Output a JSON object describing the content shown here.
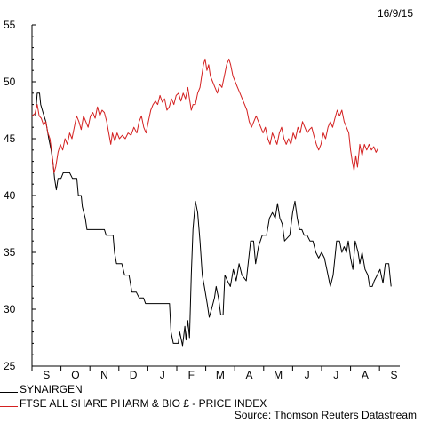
{
  "date_label": "16/9/15",
  "source": "Source: Thomson Reuters Datastream",
  "colors": {
    "synairgen": "#000000",
    "ftse": "#d42020",
    "axis": "#000000"
  },
  "chart_data": {
    "type": "line",
    "title": "",
    "xlabel": "",
    "ylabel": "",
    "ylim": [
      25,
      55
    ],
    "yticks": [
      25,
      30,
      35,
      40,
      45,
      50,
      55
    ],
    "x_range": [
      0,
      12.7
    ],
    "months": [
      "S",
      "O",
      "N",
      "D",
      "J",
      "F",
      "M",
      "A",
      "M",
      "J",
      "J",
      "A",
      "S"
    ],
    "grid": false,
    "legend_position": "bottom-left",
    "series": [
      {
        "name": "SYNAIRGEN",
        "color": "#000000",
        "points": [
          [
            0.0,
            47.0
          ],
          [
            0.12,
            47.0
          ],
          [
            0.18,
            49.0
          ],
          [
            0.26,
            49.0
          ],
          [
            0.3,
            48.0
          ],
          [
            0.38,
            47.3
          ],
          [
            0.48,
            46.5
          ],
          [
            0.58,
            45.0
          ],
          [
            0.66,
            44.0
          ],
          [
            0.72,
            43.0
          ],
          [
            0.78,
            41.5
          ],
          [
            0.84,
            40.5
          ],
          [
            0.9,
            41.5
          ],
          [
            1.0,
            41.5
          ],
          [
            1.08,
            42.0
          ],
          [
            1.3,
            42.0
          ],
          [
            1.4,
            41.5
          ],
          [
            1.55,
            41.5
          ],
          [
            1.6,
            40.0
          ],
          [
            1.7,
            40.0
          ],
          [
            1.74,
            39.0
          ],
          [
            1.84,
            38.0
          ],
          [
            1.9,
            37.0
          ],
          [
            2.1,
            37.0
          ],
          [
            2.5,
            37.0
          ],
          [
            2.56,
            36.5
          ],
          [
            2.8,
            36.5
          ],
          [
            2.85,
            35.0
          ],
          [
            2.92,
            34.0
          ],
          [
            3.1,
            34.0
          ],
          [
            3.2,
            33.0
          ],
          [
            3.35,
            33.0
          ],
          [
            3.45,
            31.5
          ],
          [
            3.6,
            31.5
          ],
          [
            3.7,
            31.0
          ],
          [
            3.85,
            31.0
          ],
          [
            3.92,
            30.5
          ],
          [
            4.5,
            30.5
          ],
          [
            4.75,
            30.5
          ],
          [
            4.8,
            28.0
          ],
          [
            4.88,
            27.0
          ],
          [
            5.05,
            27.0
          ],
          [
            5.1,
            28.0
          ],
          [
            5.2,
            26.8
          ],
          [
            5.28,
            28.5
          ],
          [
            5.32,
            27.3
          ],
          [
            5.38,
            29.0
          ],
          [
            5.44,
            27.5
          ],
          [
            5.5,
            33.0
          ],
          [
            5.56,
            37.0
          ],
          [
            5.64,
            39.5
          ],
          [
            5.72,
            38.5
          ],
          [
            5.8,
            36.0
          ],
          [
            5.88,
            33.0
          ],
          [
            5.95,
            32.0
          ],
          [
            6.05,
            30.5
          ],
          [
            6.12,
            29.3
          ],
          [
            6.2,
            30.0
          ],
          [
            6.3,
            31.0
          ],
          [
            6.36,
            32.0
          ],
          [
            6.44,
            31.0
          ],
          [
            6.52,
            29.5
          ],
          [
            6.6,
            29.5
          ],
          [
            6.66,
            33.0
          ],
          [
            6.75,
            32.5
          ],
          [
            6.85,
            32.0
          ],
          [
            6.95,
            33.5
          ],
          [
            7.05,
            32.5
          ],
          [
            7.15,
            34.0
          ],
          [
            7.25,
            33.0
          ],
          [
            7.4,
            32.5
          ],
          [
            7.55,
            36.0
          ],
          [
            7.65,
            36.0
          ],
          [
            7.72,
            34.0
          ],
          [
            7.82,
            35.5
          ],
          [
            7.95,
            36.5
          ],
          [
            8.1,
            36.5
          ],
          [
            8.2,
            38.0
          ],
          [
            8.3,
            38.5
          ],
          [
            8.4,
            38.0
          ],
          [
            8.48,
            39.3
          ],
          [
            8.56,
            38.0
          ],
          [
            8.64,
            37.5
          ],
          [
            8.72,
            36.0
          ],
          [
            8.9,
            36.5
          ],
          [
            9.0,
            38.5
          ],
          [
            9.08,
            39.5
          ],
          [
            9.16,
            38.0
          ],
          [
            9.24,
            37.0
          ],
          [
            9.32,
            37.0
          ],
          [
            9.4,
            36.5
          ],
          [
            9.5,
            36.5
          ],
          [
            9.6,
            36.0
          ],
          [
            9.7,
            36.0
          ],
          [
            9.8,
            35.0
          ],
          [
            9.9,
            34.5
          ],
          [
            10.0,
            35.0
          ],
          [
            10.1,
            34.5
          ],
          [
            10.22,
            33.0
          ],
          [
            10.3,
            32.0
          ],
          [
            10.4,
            33.0
          ],
          [
            10.52,
            36.0
          ],
          [
            10.62,
            36.0
          ],
          [
            10.7,
            35.0
          ],
          [
            10.78,
            35.5
          ],
          [
            10.86,
            35.0
          ],
          [
            10.92,
            36.0
          ],
          [
            11.0,
            34.5
          ],
          [
            11.08,
            33.5
          ],
          [
            11.16,
            36.0
          ],
          [
            11.26,
            35.0
          ],
          [
            11.32,
            34.0
          ],
          [
            11.4,
            35.0
          ],
          [
            11.5,
            33.5
          ],
          [
            11.6,
            33.0
          ],
          [
            11.66,
            32.0
          ],
          [
            11.75,
            32.0
          ],
          [
            11.82,
            32.5
          ],
          [
            11.92,
            33.0
          ],
          [
            12.02,
            33.5
          ],
          [
            12.06,
            33.0
          ],
          [
            12.12,
            32.3
          ],
          [
            12.2,
            34.0
          ],
          [
            12.32,
            34.0
          ],
          [
            12.4,
            32.0
          ]
        ]
      },
      {
        "name": "FTSE ALL SHARE PHARM & BIO £ - PRICE INDEX",
        "color": "#d42020",
        "points": [
          [
            0.0,
            47.0
          ],
          [
            0.1,
            47.2
          ],
          [
            0.18,
            48.0
          ],
          [
            0.25,
            47.0
          ],
          [
            0.32,
            46.8
          ],
          [
            0.4,
            46.2
          ],
          [
            0.48,
            46.5
          ],
          [
            0.55,
            45.5
          ],
          [
            0.62,
            45.0
          ],
          [
            0.7,
            43.5
          ],
          [
            0.76,
            42.0
          ],
          [
            0.82,
            42.5
          ],
          [
            0.9,
            43.8
          ],
          [
            0.98,
            44.5
          ],
          [
            1.06,
            44.0
          ],
          [
            1.14,
            45.0
          ],
          [
            1.22,
            44.5
          ],
          [
            1.3,
            45.5
          ],
          [
            1.38,
            45.0
          ],
          [
            1.46,
            46.0
          ],
          [
            1.54,
            47.0
          ],
          [
            1.62,
            46.5
          ],
          [
            1.7,
            45.8
          ],
          [
            1.78,
            47.0
          ],
          [
            1.86,
            46.5
          ],
          [
            1.94,
            46.0
          ],
          [
            2.02,
            47.0
          ],
          [
            2.1,
            47.3
          ],
          [
            2.18,
            46.8
          ],
          [
            2.26,
            47.8
          ],
          [
            2.34,
            47.0
          ],
          [
            2.42,
            47.5
          ],
          [
            2.5,
            47.3
          ],
          [
            2.58,
            46.5
          ],
          [
            2.65,
            45.5
          ],
          [
            2.72,
            44.5
          ],
          [
            2.78,
            45.5
          ],
          [
            2.86,
            44.8
          ],
          [
            2.94,
            45.5
          ],
          [
            3.02,
            45.0
          ],
          [
            3.12,
            45.3
          ],
          [
            3.22,
            45.0
          ],
          [
            3.32,
            45.5
          ],
          [
            3.42,
            45.3
          ],
          [
            3.52,
            46.0
          ],
          [
            3.62,
            45.5
          ],
          [
            3.7,
            46.5
          ],
          [
            3.78,
            47.0
          ],
          [
            3.86,
            46.0
          ],
          [
            3.94,
            45.5
          ],
          [
            4.02,
            46.5
          ],
          [
            4.1,
            47.5
          ],
          [
            4.18,
            48.0
          ],
          [
            4.26,
            48.3
          ],
          [
            4.34,
            48.0
          ],
          [
            4.42,
            48.8
          ],
          [
            4.5,
            48.2
          ],
          [
            4.58,
            48.5
          ],
          [
            4.66,
            47.5
          ],
          [
            4.74,
            47.8
          ],
          [
            4.82,
            48.5
          ],
          [
            4.9,
            48.0
          ],
          [
            4.98,
            48.8
          ],
          [
            5.06,
            49.0
          ],
          [
            5.14,
            48.3
          ],
          [
            5.22,
            49.0
          ],
          [
            5.3,
            48.5
          ],
          [
            5.38,
            49.5
          ],
          [
            5.44,
            48.5
          ],
          [
            5.5,
            47.5
          ],
          [
            5.56,
            48.0
          ],
          [
            5.64,
            48.0
          ],
          [
            5.72,
            49.0
          ],
          [
            5.8,
            49.5
          ],
          [
            5.86,
            50.5
          ],
          [
            5.92,
            51.5
          ],
          [
            5.98,
            52.0
          ],
          [
            6.04,
            51.0
          ],
          [
            6.1,
            51.5
          ],
          [
            6.16,
            50.5
          ],
          [
            6.24,
            50.0
          ],
          [
            6.32,
            49.5
          ],
          [
            6.4,
            49.0
          ],
          [
            6.48,
            49.8
          ],
          [
            6.56,
            49.5
          ],
          [
            6.64,
            50.5
          ],
          [
            6.72,
            51.5
          ],
          [
            6.8,
            52.0
          ],
          [
            6.86,
            51.5
          ],
          [
            6.94,
            50.5
          ],
          [
            7.02,
            50.0
          ],
          [
            7.1,
            49.5
          ],
          [
            7.18,
            49.0
          ],
          [
            7.26,
            48.5
          ],
          [
            7.34,
            48.0
          ],
          [
            7.42,
            47.5
          ],
          [
            7.5,
            46.5
          ],
          [
            7.58,
            46.0
          ],
          [
            7.66,
            46.5
          ],
          [
            7.74,
            47.0
          ],
          [
            7.82,
            46.5
          ],
          [
            7.9,
            46.0
          ],
          [
            7.98,
            45.5
          ],
          [
            8.06,
            46.0
          ],
          [
            8.14,
            45.0
          ],
          [
            8.22,
            44.5
          ],
          [
            8.3,
            45.5
          ],
          [
            8.38,
            45.0
          ],
          [
            8.46,
            44.5
          ],
          [
            8.54,
            45.5
          ],
          [
            8.62,
            46.0
          ],
          [
            8.7,
            45.0
          ],
          [
            8.78,
            44.5
          ],
          [
            8.86,
            45.0
          ],
          [
            8.94,
            44.5
          ],
          [
            9.02,
            45.5
          ],
          [
            9.1,
            45.0
          ],
          [
            9.18,
            46.0
          ],
          [
            9.26,
            45.5
          ],
          [
            9.34,
            46.5
          ],
          [
            9.42,
            46.0
          ],
          [
            9.5,
            45.5
          ],
          [
            9.58,
            45.8
          ],
          [
            9.66,
            46.0
          ],
          [
            9.74,
            45.2
          ],
          [
            9.82,
            44.5
          ],
          [
            9.9,
            44.0
          ],
          [
            9.98,
            44.5
          ],
          [
            10.06,
            45.5
          ],
          [
            10.14,
            45.0
          ],
          [
            10.22,
            46.0
          ],
          [
            10.3,
            46.5
          ],
          [
            10.38,
            46.0
          ],
          [
            10.46,
            46.8
          ],
          [
            10.54,
            47.5
          ],
          [
            10.62,
            47.0
          ],
          [
            10.7,
            47.5
          ],
          [
            10.78,
            46.5
          ],
          [
            10.86,
            46.0
          ],
          [
            10.94,
            45.5
          ],
          [
            11.0,
            44.0
          ],
          [
            11.06,
            43.0
          ],
          [
            11.12,
            42.2
          ],
          [
            11.18,
            43.5
          ],
          [
            11.24,
            42.5
          ],
          [
            11.32,
            44.5
          ],
          [
            11.4,
            43.5
          ],
          [
            11.48,
            44.5
          ],
          [
            11.56,
            44.0
          ],
          [
            11.64,
            44.5
          ],
          [
            11.72,
            44.0
          ],
          [
            11.8,
            44.3
          ],
          [
            11.88,
            43.8
          ],
          [
            11.96,
            44.2
          ]
        ]
      }
    ]
  }
}
